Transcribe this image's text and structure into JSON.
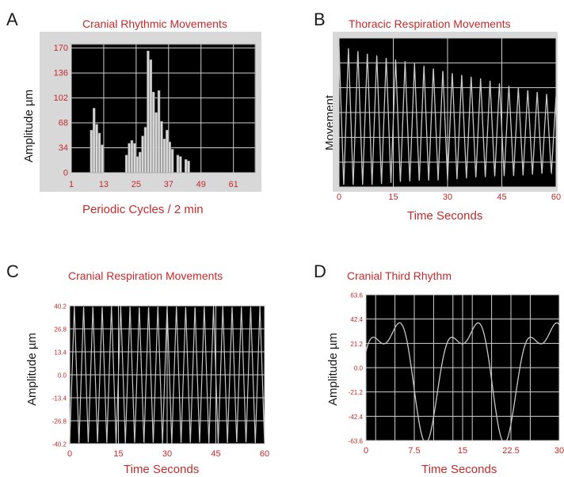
{
  "chart_data": [
    {
      "id": "A",
      "letter": "A",
      "type": "bar",
      "title": "Cranial Rhythmic Movements",
      "xlabel": "Periodic Cycles / 2 min",
      "ylabel": "Amplitude µm",
      "xlim": [
        1,
        69
      ],
      "ylim": [
        0,
        175
      ],
      "xticks": [
        1,
        13,
        25,
        37,
        49,
        61
      ],
      "yticks": [
        0,
        34,
        68,
        102,
        136,
        170
      ],
      "grid": true,
      "plot_bg": "#000000",
      "frame_bg": "#d8d8d8",
      "series": [
        {
          "values": [
            {
              "x": 8.5,
              "y": 58
            },
            {
              "x": 9.5,
              "y": 88
            },
            {
              "x": 10.5,
              "y": 66
            },
            {
              "x": 11.5,
              "y": 54
            },
            {
              "x": 12.5,
              "y": 38
            },
            {
              "x": 21.5,
              "y": 24
            },
            {
              "x": 22.5,
              "y": 40
            },
            {
              "x": 23.5,
              "y": 44
            },
            {
              "x": 24.5,
              "y": 40
            },
            {
              "x": 25.5,
              "y": 22
            },
            {
              "x": 26.5,
              "y": 28
            },
            {
              "x": 27.5,
              "y": 50
            },
            {
              "x": 28.5,
              "y": 62
            },
            {
              "x": 29.5,
              "y": 166
            },
            {
              "x": 30.5,
              "y": 154
            },
            {
              "x": 31.5,
              "y": 110
            },
            {
              "x": 32.5,
              "y": 82
            },
            {
              "x": 33.5,
              "y": 112
            },
            {
              "x": 34.5,
              "y": 70
            },
            {
              "x": 35.5,
              "y": 46
            },
            {
              "x": 36.5,
              "y": 58
            },
            {
              "x": 37.5,
              "y": 42
            },
            {
              "x": 38.5,
              "y": 32
            },
            {
              "x": 40.5,
              "y": 24
            },
            {
              "x": 41.5,
              "y": 22
            },
            {
              "x": 43.5,
              "y": 18
            },
            {
              "x": 44.5,
              "y": 16
            }
          ]
        }
      ]
    },
    {
      "id": "B",
      "letter": "B",
      "type": "line",
      "title": "Thoracic Respiration Movements",
      "xlabel": "Time Seconds",
      "ylabel": "Movement",
      "xlim": [
        0,
        60
      ],
      "ylim": [
        -1,
        1
      ],
      "xticks": [
        0,
        15,
        30,
        45,
        60
      ],
      "yticks": [],
      "grid": true,
      "plot_bg": "#000000",
      "frame_bg": "#d8d8d8",
      "series": [
        {
          "waveform": "decaying_oscillation",
          "cycles": 23,
          "amplitude_start": 1.0,
          "amplitude_end": 0.55,
          "baseline": -0.05
        }
      ]
    },
    {
      "id": "C",
      "letter": "C",
      "type": "line",
      "title": "Cranial Respiration Movements",
      "xlabel": "Time Seconds",
      "ylabel": "Amplitude µm",
      "xlim": [
        0,
        60
      ],
      "ylim": [
        -40.2,
        40.2
      ],
      "xticks": [
        0,
        15,
        30,
        45,
        60
      ],
      "yticks": [
        -40.2,
        -26.8,
        -13.4,
        0.0,
        13.4,
        26.8,
        40.2
      ],
      "ytick_labels": [
        "-40.2",
        "-26.8",
        "-13.4",
        "0.0",
        "13.4",
        "26.8",
        "40.2"
      ],
      "grid": true,
      "plot_bg": "#000000",
      "frame_bg": "#ffffff",
      "series": [
        {
          "waveform": "triangle",
          "cycles": 21,
          "amplitude": 40.2
        }
      ]
    },
    {
      "id": "D",
      "letter": "D",
      "type": "line",
      "title": "Cranial Third Rhythm",
      "xlabel": "Time Seconds",
      "ylabel": "Amplitude µm",
      "xlim": [
        0,
        30
      ],
      "ylim": [
        -63.6,
        63.6
      ],
      "xticks": [
        0,
        7.5,
        15,
        22.5,
        30
      ],
      "xtick_labels": [
        "0",
        "7.5",
        "15",
        "22.5",
        "30"
      ],
      "yticks": [
        -63.6,
        -42.4,
        -21.2,
        0.0,
        21.2,
        42.4,
        63.6
      ],
      "ytick_labels": [
        "-63.6",
        "-42.4",
        "-21.2",
        "0.0",
        "21.2",
        "42.4",
        "63.6"
      ],
      "grid": true,
      "plot_bg": "#000000",
      "frame_bg": "#ffffff",
      "series": [
        {
          "waveform": "sum_of_sines",
          "period_seconds": 12.2,
          "components": [
            {
              "harmonic": 1,
              "amplitude": 44,
              "phase": 0
            },
            {
              "harmonic": 2,
              "amplitude": 22,
              "phase": 1.9
            }
          ]
        }
      ]
    }
  ],
  "colors": {
    "title": "#c42a2a",
    "axis_label": "#c42a2a",
    "tick_label": "#c42a2a",
    "grid": "#d0d0d0",
    "trace": "#c8c8c8",
    "bar_fill": "#d9d9d9"
  }
}
